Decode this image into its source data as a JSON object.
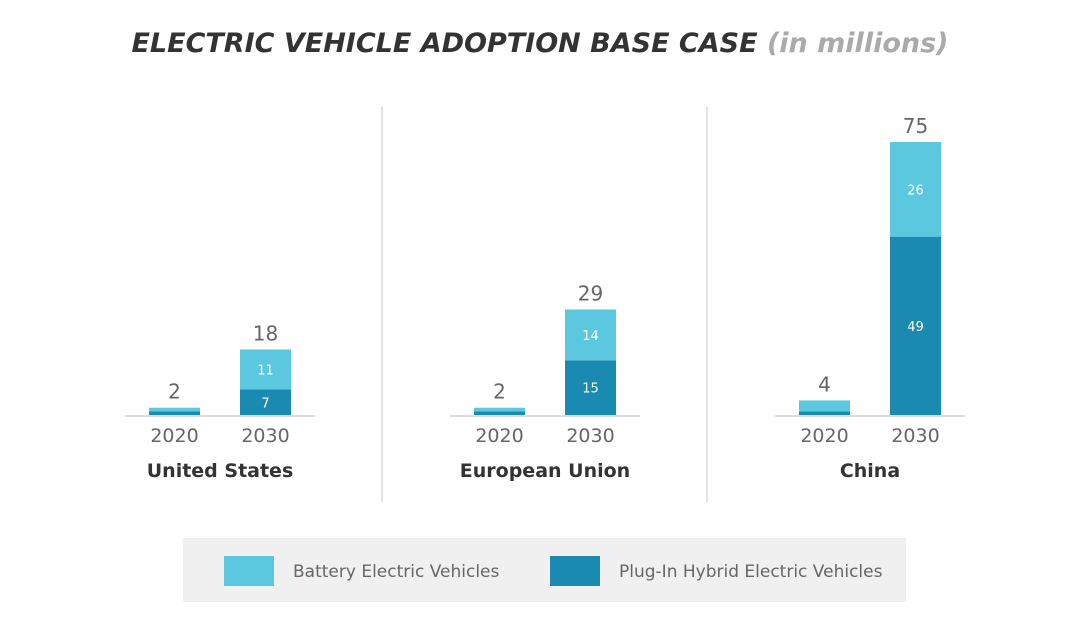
{
  "title": {
    "main": "ELECTRIC VEHICLE ADOPTION BASE CASE",
    "sub": "(in millions)"
  },
  "colors": {
    "bev": "#5bc8e0",
    "phev": "#1b8ab0"
  },
  "chart_data": {
    "type": "bar",
    "stacked": true,
    "title": "ELECTRIC VEHICLE ADOPTION BASE CASE (in millions)",
    "categories": [
      "2020",
      "2030"
    ],
    "legend_position": "bottom",
    "panels": [
      {
        "name": "United States",
        "totals": [
          2,
          18
        ],
        "series": [
          {
            "name": "Plug-In Hybrid Electric Vehicles",
            "values": [
              1,
              7
            ]
          },
          {
            "name": "Battery Electric Vehicles",
            "values": [
              1,
              11
            ]
          }
        ]
      },
      {
        "name": "European Union",
        "totals": [
          2,
          29
        ],
        "series": [
          {
            "name": "Plug-In Hybrid Electric Vehicles",
            "values": [
              1,
              15
            ]
          },
          {
            "name": "Battery Electric Vehicles",
            "values": [
              1,
              14
            ]
          }
        ]
      },
      {
        "name": "China",
        "totals": [
          4,
          75
        ],
        "series": [
          {
            "name": "Plug-In Hybrid Electric Vehicles",
            "values": [
              1,
              49
            ]
          },
          {
            "name": "Battery Electric Vehicles",
            "values": [
              3,
              26
            ]
          }
        ]
      }
    ]
  },
  "legend": [
    {
      "label": "Battery Electric Vehicles"
    },
    {
      "label": "Plug-In Hybrid Electric Vehicles"
    }
  ]
}
